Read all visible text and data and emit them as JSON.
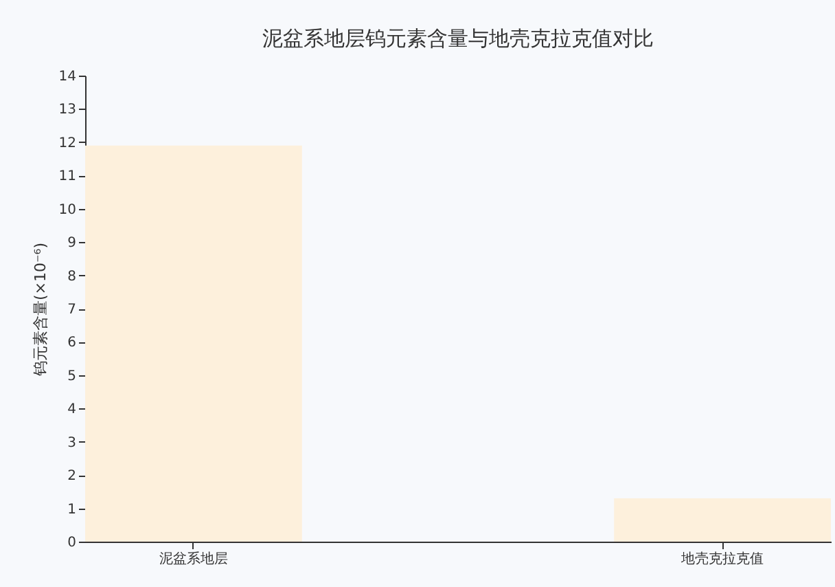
{
  "chart_data": {
    "type": "bar",
    "title": "泥盆系地层钨元素含量与地壳克拉克值对比",
    "ylabel": "钨元素含量(×10⁻⁶)",
    "categories": [
      "泥盆系地层",
      "地壳克拉克值"
    ],
    "values": [
      11.9,
      1.3
    ],
    "color": "#fdf0dc",
    "ylim": [
      0,
      14
    ],
    "yticks": [
      0,
      1,
      2,
      3,
      4,
      5,
      6,
      7,
      8,
      9,
      10,
      11,
      12,
      13,
      14
    ],
    "grid": false,
    "legend": false
  }
}
